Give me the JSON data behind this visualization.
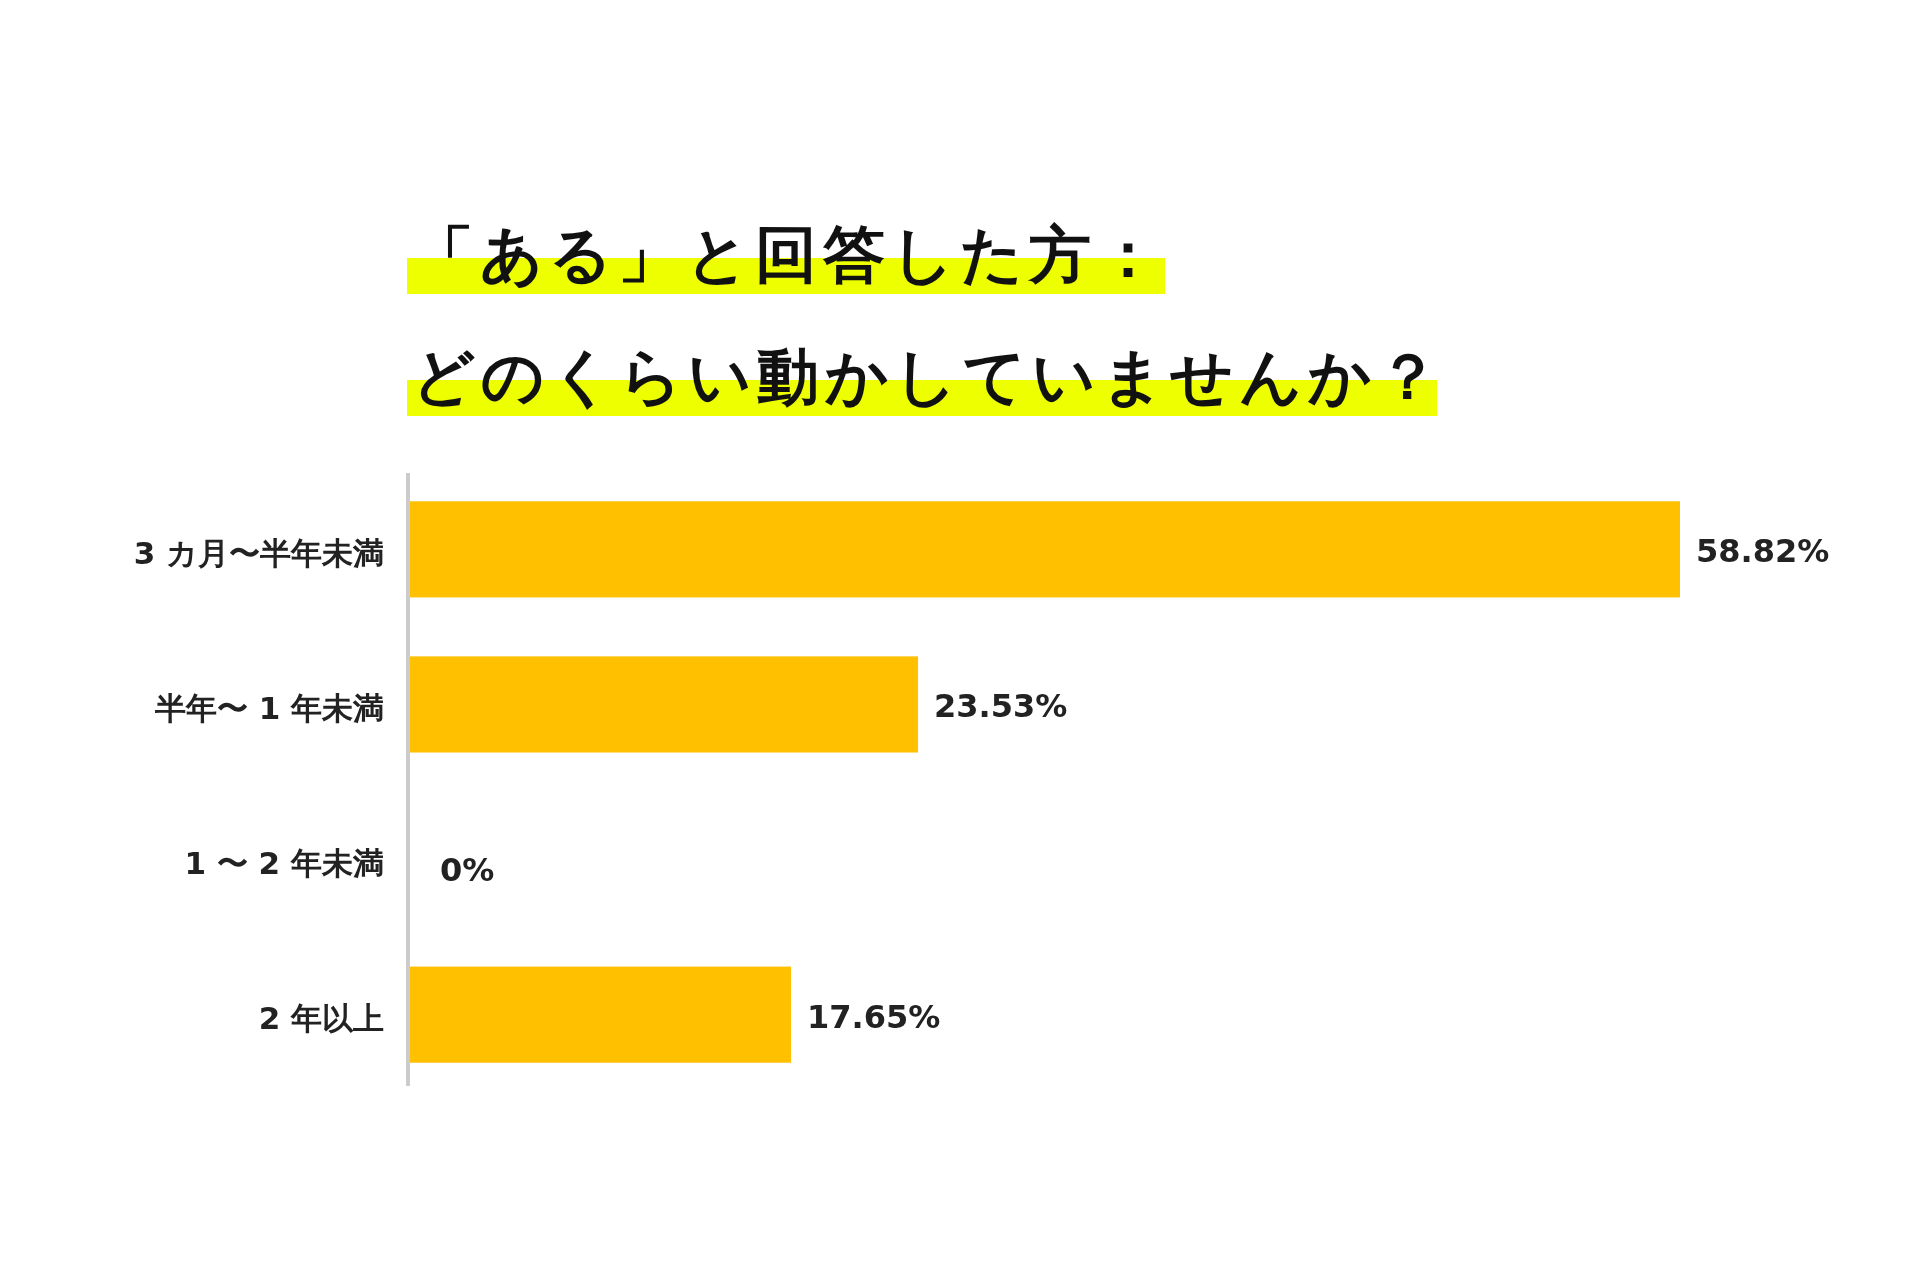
{
  "chart_data": {
    "type": "bar",
    "orientation": "horizontal",
    "title": "「ある」と回答した方：",
    "subtitle": "どのくらい動かしていませんか？",
    "categories": [
      "3 カ月〜半年未満",
      "半年〜 1 年未満",
      "1 〜 2 年未満",
      "2 年以上"
    ],
    "values": [
      58.82,
      23.53,
      0,
      17.65
    ],
    "color": "#ffc000",
    "data_labels": true,
    "value_labels": [
      "58.82%",
      "23.53%",
      "0%",
      "17.65%"
    ],
    "relative": false
  }
}
